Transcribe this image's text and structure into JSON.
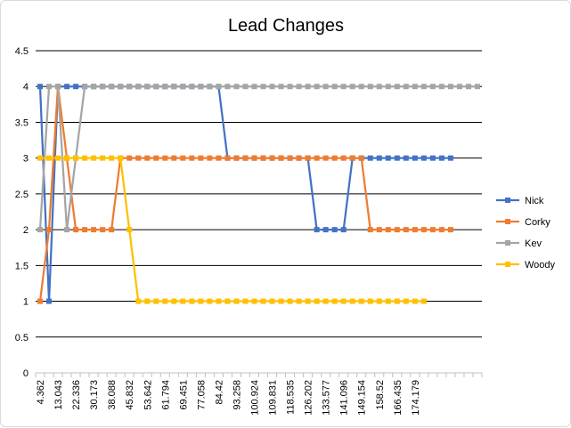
{
  "chart_data": {
    "type": "line",
    "title": "Lead Changes",
    "ylim": [
      0,
      4.5
    ],
    "yticks": [
      "0",
      "0.5",
      "1",
      "1.5",
      "2",
      "2.5",
      "3",
      "3.5",
      "4",
      "4.5"
    ],
    "x_tick_labels": [
      "4.362",
      "13.043",
      "22.336",
      "30.173",
      "38.088",
      "45.832",
      "53.642",
      "61.794",
      "69.451",
      "77.058",
      "84.42",
      "93.258",
      "100.924",
      "109.831",
      "118.535",
      "126.202",
      "133.577",
      "141.096",
      "149.154",
      "158.52",
      "166.435",
      "174.179"
    ],
    "grid": "horizontal",
    "legend_position": "right",
    "series": [
      {
        "name": "Nick",
        "color": "#4472c4",
        "values": [
          4,
          1,
          4,
          4,
          4,
          4,
          4,
          4,
          4,
          4,
          4,
          4,
          4,
          4,
          4,
          4,
          4,
          4,
          4,
          4,
          4,
          3,
          3,
          3,
          3,
          3,
          3,
          3,
          3,
          3,
          3,
          2,
          2,
          2,
          2,
          3,
          3,
          3,
          3,
          3,
          3,
          3,
          3,
          3,
          3,
          3,
          3
        ]
      },
      {
        "name": "Corky",
        "color": "#ed7d31",
        "values": [
          1,
          2,
          4,
          3,
          2,
          2,
          2,
          2,
          2,
          3,
          3,
          3,
          3,
          3,
          3,
          3,
          3,
          3,
          3,
          3,
          3,
          3,
          3,
          3,
          3,
          3,
          3,
          3,
          3,
          3,
          3,
          3,
          3,
          3,
          3,
          3,
          3,
          2,
          2,
          2,
          2,
          2,
          2,
          2,
          2,
          2,
          2
        ]
      },
      {
        "name": "Kev",
        "color": "#a5a5a5",
        "values": [
          2,
          4,
          4,
          2,
          3,
          4,
          4,
          4,
          4,
          4,
          4,
          4,
          4,
          4,
          4,
          4,
          4,
          4,
          4,
          4,
          4,
          4,
          4,
          4,
          4,
          4,
          4,
          4,
          4,
          4,
          4,
          4,
          4,
          4,
          4,
          4,
          4,
          4,
          4,
          4,
          4,
          4,
          4,
          4,
          4,
          4,
          4,
          4,
          4,
          4
        ]
      },
      {
        "name": "Woody",
        "color": "#ffc000",
        "values": [
          3,
          3,
          3,
          3,
          3,
          3,
          3,
          3,
          3,
          3,
          2,
          1,
          1,
          1,
          1,
          1,
          1,
          1,
          1,
          1,
          1,
          1,
          1,
          1,
          1,
          1,
          1,
          1,
          1,
          1,
          1,
          1,
          1,
          1,
          1,
          1,
          1,
          1,
          1,
          1,
          1,
          1,
          1,
          1
        ]
      }
    ]
  }
}
